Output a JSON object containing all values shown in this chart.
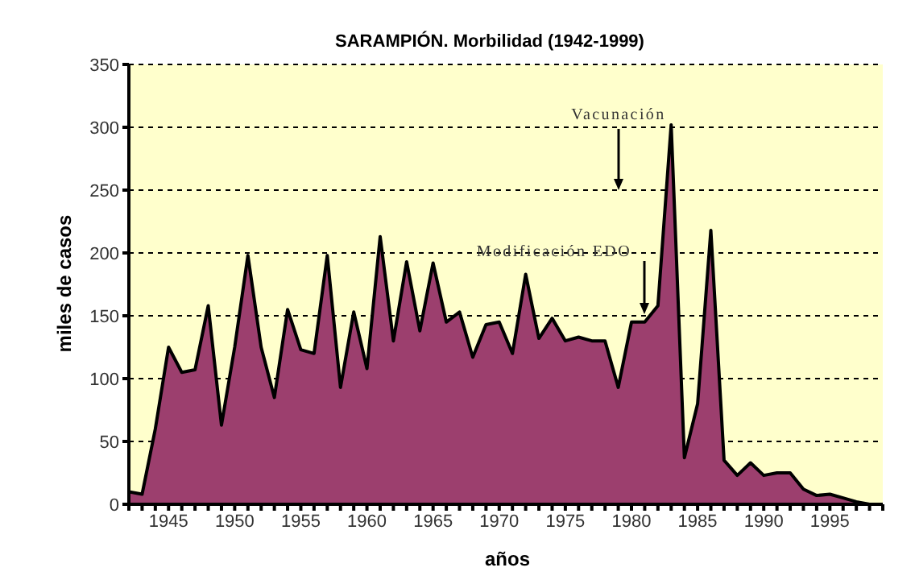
{
  "chart_data": {
    "type": "area",
    "title": "SARAMPIÓN. Morbilidad (1942-1999)",
    "xlabel": "años",
    "ylabel": "miles de casos",
    "x": [
      1942,
      1943,
      1944,
      1945,
      1946,
      1947,
      1948,
      1949,
      1950,
      1951,
      1952,
      1953,
      1954,
      1955,
      1956,
      1957,
      1958,
      1959,
      1960,
      1961,
      1962,
      1963,
      1964,
      1965,
      1966,
      1967,
      1968,
      1969,
      1970,
      1971,
      1972,
      1973,
      1974,
      1975,
      1976,
      1977,
      1978,
      1979,
      1980,
      1981,
      1982,
      1983,
      1984,
      1985,
      1986,
      1987,
      1988,
      1989,
      1990,
      1991,
      1992,
      1993,
      1994,
      1995,
      1996,
      1997,
      1998,
      1999
    ],
    "series": [
      {
        "color": "#9c3f6e",
        "values": [
          10,
          8,
          60,
          125,
          105,
          107,
          158,
          63,
          125,
          198,
          125,
          85,
          155,
          123,
          120,
          198,
          93,
          153,
          108,
          213,
          130,
          193,
          138,
          192,
          145,
          153,
          117,
          143,
          145,
          120,
          183,
          132,
          148,
          130,
          133,
          130,
          130,
          93,
          145,
          145,
          158,
          302,
          37,
          80,
          218,
          35,
          23,
          33,
          23,
          25,
          25,
          12,
          7,
          8,
          5,
          2,
          0,
          0
        ]
      }
    ],
    "xlim": [
      1942,
      1999
    ],
    "xticks": [
      {
        "value": 1942,
        "label": null
      },
      {
        "value": 1943,
        "label": null
      },
      {
        "value": 1944,
        "label": null
      },
      1945,
      {
        "value": 1946,
        "label": null
      },
      {
        "value": 1947,
        "label": null
      },
      {
        "value": 1948,
        "label": null
      },
      {
        "value": 1949,
        "label": null
      },
      1950,
      {
        "value": 1951,
        "label": null
      },
      {
        "value": 1952,
        "label": null
      },
      {
        "value": 1953,
        "label": null
      },
      {
        "value": 1954,
        "label": null
      },
      1955,
      {
        "value": 1956,
        "label": null
      },
      {
        "value": 1957,
        "label": null
      },
      {
        "value": 1958,
        "label": null
      },
      {
        "value": 1959,
        "label": null
      },
      1960,
      {
        "value": 1961,
        "label": null
      },
      {
        "value": 1962,
        "label": null
      },
      {
        "value": 1963,
        "label": null
      },
      {
        "value": 1964,
        "label": null
      },
      1965,
      {
        "value": 1966,
        "label": null
      },
      {
        "value": 1967,
        "label": null
      },
      {
        "value": 1968,
        "label": null
      },
      {
        "value": 1969,
        "label": null
      },
      1970,
      {
        "value": 1971,
        "label": null
      },
      {
        "value": 1972,
        "label": null
      },
      {
        "value": 1973,
        "label": null
      },
      {
        "value": 1974,
        "label": null
      },
      1975,
      {
        "value": 1976,
        "label": null
      },
      {
        "value": 1977,
        "label": null
      },
      {
        "value": 1978,
        "label": null
      },
      {
        "value": 1979,
        "label": null
      },
      1980,
      {
        "value": 1981,
        "label": null
      },
      {
        "value": 1982,
        "label": null
      },
      {
        "value": 1983,
        "label": null
      },
      {
        "value": 1984,
        "label": null
      },
      1985,
      {
        "value": 1986,
        "label": null
      },
      {
        "value": 1987,
        "label": null
      },
      {
        "value": 1988,
        "label": null
      },
      {
        "value": 1989,
        "label": null
      },
      1990,
      {
        "value": 1991,
        "label": null
      },
      {
        "value": 1992,
        "label": null
      },
      {
        "value": 1993,
        "label": null
      },
      {
        "value": 1994,
        "label": null
      },
      1995,
      {
        "value": 1996,
        "label": null
      },
      {
        "value": 1997,
        "label": null
      },
      {
        "value": 1998,
        "label": null
      },
      {
        "value": 1999,
        "label": null
      }
    ],
    "ylim": [
      0,
      350
    ],
    "yticks": [
      0,
      50,
      100,
      150,
      200,
      250,
      300,
      350
    ],
    "grid": "y",
    "line_style": "solid",
    "marker": "none",
    "annotations": [
      "Vacunación",
      "Modificación EDO"
    ]
  }
}
